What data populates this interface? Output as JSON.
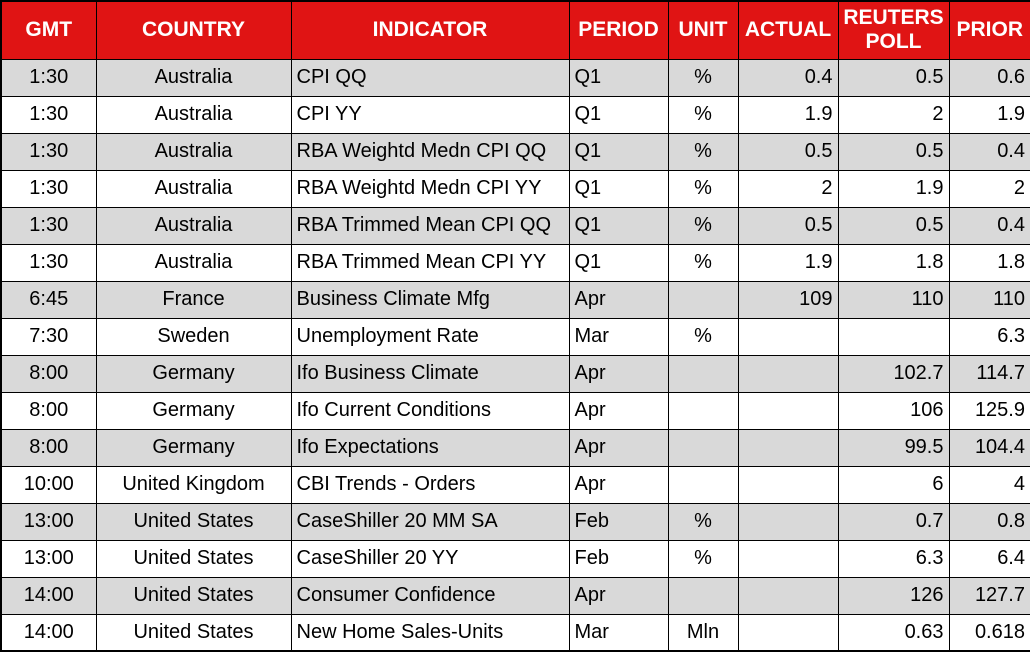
{
  "colors": {
    "header_bg": "#e01414",
    "header_text": "#ffffff",
    "row_shaded": "#d9d9d9",
    "row_plain": "#ffffff",
    "border": "#000000",
    "body_text": "#000000"
  },
  "table": {
    "columns": [
      {
        "key": "gmt",
        "label": "GMT"
      },
      {
        "key": "country",
        "label": "COUNTRY"
      },
      {
        "key": "indicator",
        "label": "INDICATOR"
      },
      {
        "key": "period",
        "label": "PERIOD"
      },
      {
        "key": "unit",
        "label": "UNIT"
      },
      {
        "key": "actual",
        "label": "ACTUAL"
      },
      {
        "key": "poll",
        "label": "REUTERS POLL"
      },
      {
        "key": "prior",
        "label": "PRIOR"
      }
    ],
    "rows": [
      {
        "gmt": "1:30",
        "country": "Australia",
        "indicator": "CPI QQ",
        "period": "Q1",
        "unit": "%",
        "actual": "0.4",
        "poll": "0.5",
        "prior": "0.6"
      },
      {
        "gmt": "1:30",
        "country": "Australia",
        "indicator": "CPI YY",
        "period": "Q1",
        "unit": "%",
        "actual": "1.9",
        "poll": "2",
        "prior": "1.9"
      },
      {
        "gmt": "1:30",
        "country": "Australia",
        "indicator": "RBA Weightd Medn CPI QQ",
        "period": "Q1",
        "unit": "%",
        "actual": "0.5",
        "poll": "0.5",
        "prior": "0.4"
      },
      {
        "gmt": "1:30",
        "country": "Australia",
        "indicator": "RBA Weightd Medn CPI YY",
        "period": "Q1",
        "unit": "%",
        "actual": "2",
        "poll": "1.9",
        "prior": "2"
      },
      {
        "gmt": "1:30",
        "country": "Australia",
        "indicator": "RBA Trimmed Mean CPI QQ",
        "period": "Q1",
        "unit": "%",
        "actual": "0.5",
        "poll": "0.5",
        "prior": "0.4"
      },
      {
        "gmt": "1:30",
        "country": "Australia",
        "indicator": "RBA Trimmed Mean CPI YY",
        "period": "Q1",
        "unit": "%",
        "actual": "1.9",
        "poll": "1.8",
        "prior": "1.8"
      },
      {
        "gmt": "6:45",
        "country": "France",
        "indicator": "Business Climate Mfg",
        "period": "Apr",
        "unit": "",
        "actual": "109",
        "poll": "110",
        "prior": "110"
      },
      {
        "gmt": "7:30",
        "country": "Sweden",
        "indicator": "Unemployment Rate",
        "period": "Mar",
        "unit": "%",
        "actual": "",
        "poll": "",
        "prior": "6.3"
      },
      {
        "gmt": "8:00",
        "country": "Germany",
        "indicator": "Ifo Business Climate",
        "period": "Apr",
        "unit": "",
        "actual": "",
        "poll": "102.7",
        "prior": "114.7"
      },
      {
        "gmt": "8:00",
        "country": "Germany",
        "indicator": "Ifo Current Conditions",
        "period": "Apr",
        "unit": "",
        "actual": "",
        "poll": "106",
        "prior": "125.9"
      },
      {
        "gmt": "8:00",
        "country": "Germany",
        "indicator": "Ifo Expectations",
        "period": "Apr",
        "unit": "",
        "actual": "",
        "poll": "99.5",
        "prior": "104.4"
      },
      {
        "gmt": "10:00",
        "country": "United Kingdom",
        "indicator": "CBI Trends - Orders",
        "period": "Apr",
        "unit": "",
        "actual": "",
        "poll": "6",
        "prior": "4"
      },
      {
        "gmt": "13:00",
        "country": "United States",
        "indicator": "CaseShiller 20 MM SA",
        "period": "Feb",
        "unit": "%",
        "actual": "",
        "poll": "0.7",
        "prior": "0.8"
      },
      {
        "gmt": "13:00",
        "country": "United States",
        "indicator": "CaseShiller 20 YY",
        "period": "Feb",
        "unit": "%",
        "actual": "",
        "poll": "6.3",
        "prior": "6.4"
      },
      {
        "gmt": "14:00",
        "country": "United States",
        "indicator": "Consumer Confidence",
        "period": "Apr",
        "unit": "",
        "actual": "",
        "poll": "126",
        "prior": "127.7"
      },
      {
        "gmt": "14:00",
        "country": "United States",
        "indicator": "New Home Sales-Units",
        "period": "Mar",
        "unit": "Mln",
        "actual": "",
        "poll": "0.63",
        "prior": "0.618"
      }
    ]
  }
}
